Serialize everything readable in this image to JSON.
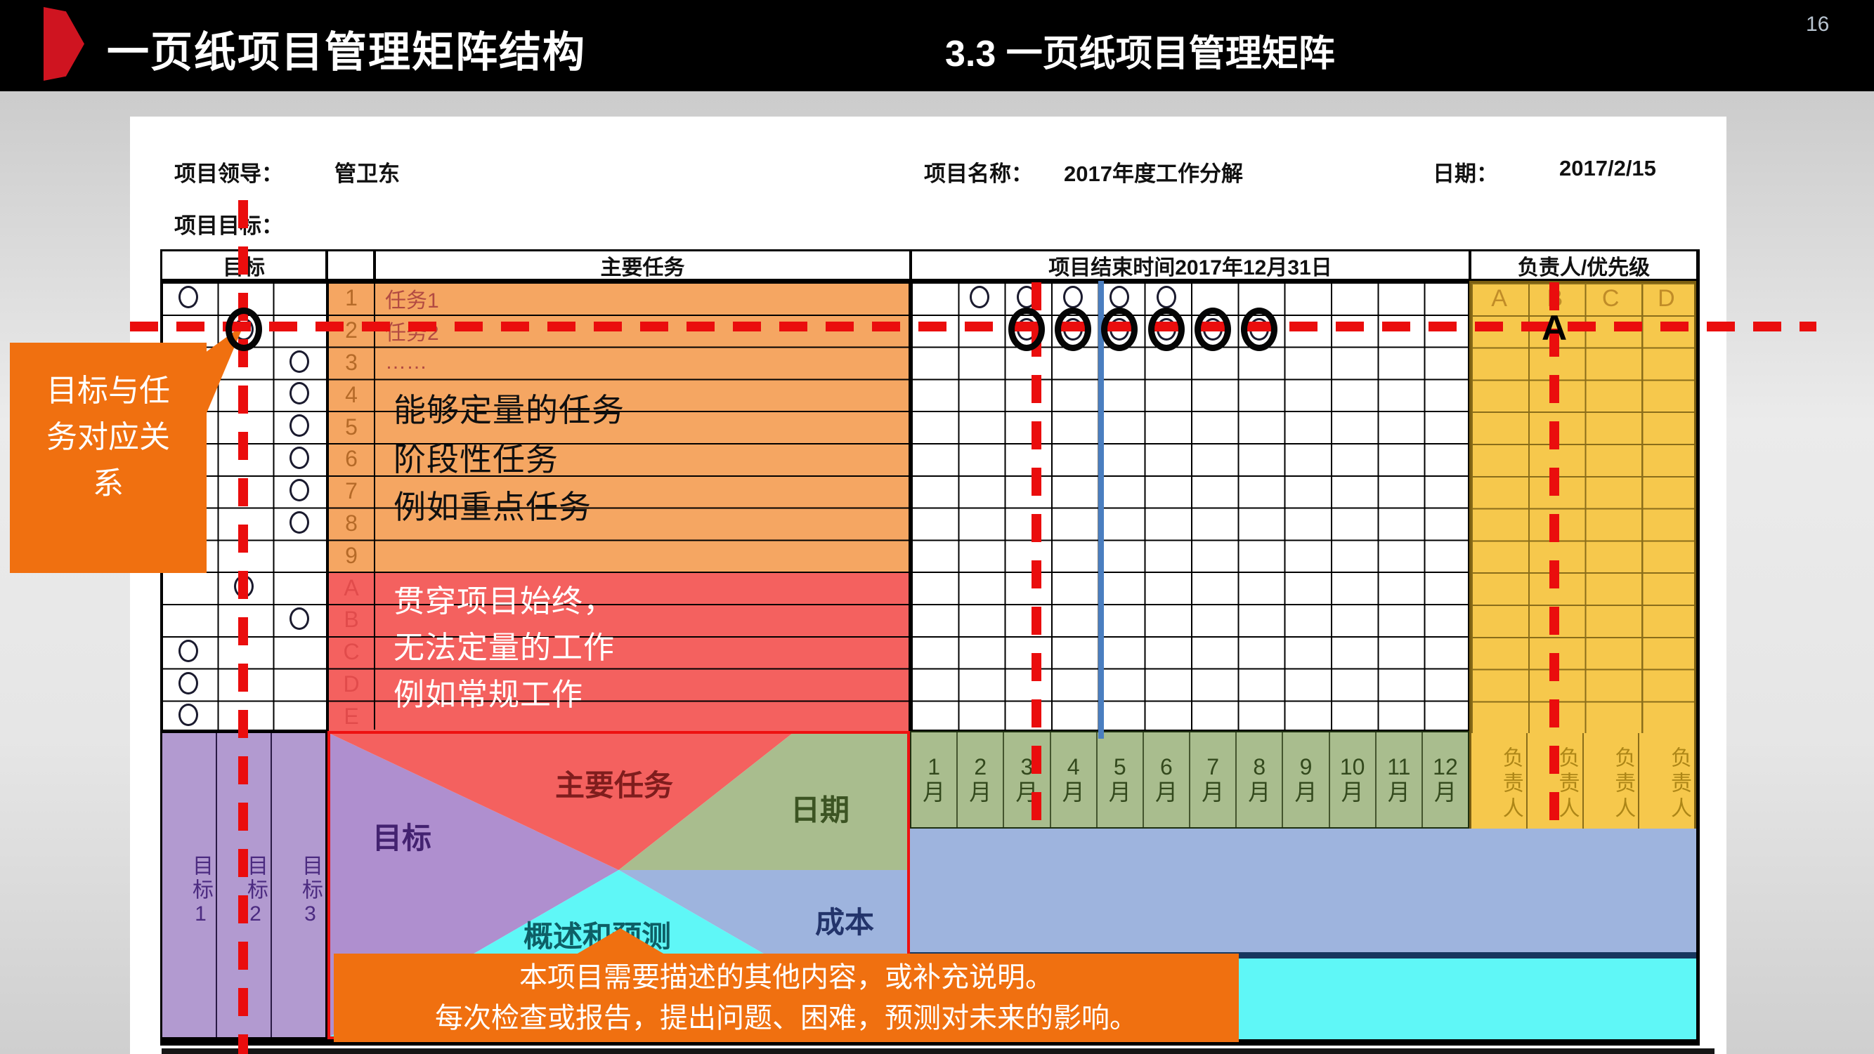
{
  "slide": {
    "page_number": "16"
  },
  "header": {
    "title_left": "一页纸项目管理矩阵结构",
    "title_right": "3.3 一页纸项目管理矩阵"
  },
  "info": {
    "leader_label": "项目领导：",
    "leader_value": "管卫东",
    "name_label": "项目名称：",
    "name_value": "2017年度工作分解",
    "date_label": "日期：",
    "date_value": "2017/2/15",
    "goal_label": "项目目标："
  },
  "matrix": {
    "goal_header": "目标",
    "tasks_header": "主要任务",
    "timeline_header": "项目结束时间2017年12月31日",
    "owner_header": "负责人/优先级",
    "task_rows": [
      {
        "num": "1",
        "label": "任务1"
      },
      {
        "num": "2",
        "label": "任务2"
      },
      {
        "num": "3",
        "label": "……"
      },
      {
        "num": "4",
        "label": ""
      },
      {
        "num": "5",
        "label": ""
      },
      {
        "num": "6",
        "label": ""
      },
      {
        "num": "7",
        "label": ""
      },
      {
        "num": "8",
        "label": ""
      },
      {
        "num": "9",
        "label": ""
      }
    ],
    "routine_rows": [
      {
        "num": "A"
      },
      {
        "num": "B"
      },
      {
        "num": "C"
      },
      {
        "num": "D"
      },
      {
        "num": "E"
      }
    ],
    "months": [
      "1",
      "2",
      "3",
      "4",
      "5",
      "6",
      "7",
      "8",
      "9",
      "10",
      "11",
      "12"
    ],
    "month_unit": "月",
    "priority_letters": [
      "A",
      "B",
      "C",
      "D"
    ],
    "owner_col_labels": [
      "负责人",
      "负责人",
      "负责人",
      "负责人"
    ],
    "quant_note_lines": [
      "能够定量的任务",
      "阶段性任务",
      "例如重点任务"
    ],
    "routine_note_lines": [
      "贯穿项目始终，",
      "无法定量的工作",
      "例如常规工作"
    ],
    "goal_marks": [
      {
        "row": 1,
        "col": 1,
        "ringed": false
      },
      {
        "row": 2,
        "col": 2,
        "ringed": true
      },
      {
        "row": 3,
        "col": 3,
        "ringed": false
      },
      {
        "row": 4,
        "col": 3,
        "ringed": false
      },
      {
        "row": 5,
        "col": 3,
        "ringed": false
      },
      {
        "row": 6,
        "col": 3,
        "ringed": false
      },
      {
        "row": 7,
        "col": 3,
        "ringed": false
      },
      {
        "row": 8,
        "col": 3,
        "ringed": false
      },
      {
        "row": 9,
        "col": 1,
        "ringed": false
      },
      {
        "row": 10,
        "col": 2,
        "ringed": false
      },
      {
        "row": 11,
        "col": 3,
        "ringed": false
      },
      {
        "row": 12,
        "col": 1,
        "ringed": false
      },
      {
        "row": 13,
        "col": 1,
        "ringed": false
      },
      {
        "row": 14,
        "col": 1,
        "ringed": false
      }
    ],
    "month_marks": [
      {
        "row": 1,
        "months": [
          2,
          3,
          4,
          5,
          6
        ],
        "ringed": false
      },
      {
        "row": 2,
        "months": [
          3,
          4,
          5,
          6,
          7,
          8
        ],
        "ringed": true
      }
    ],
    "priority_mark": {
      "label": "A"
    }
  },
  "quadrant": {
    "goal": "目标",
    "main_tasks": "主要任务",
    "date": "日期",
    "overview": "概述和预测",
    "cost": "成本"
  },
  "goal_columns": [
    "目标1",
    "目标2",
    "目标3"
  ],
  "callouts": {
    "left": "目标与任务对应关系",
    "bottom_line1": "本项目需要描述的其他内容，或补充说明。",
    "bottom_line2": "每次检查或报告，提出问题、困难，预测对未来的影响。"
  },
  "colors": {
    "accent_red": "#ea0d0d",
    "callout_orange": "#f07010",
    "task_orange": "#f5a662",
    "routine_red": "#f4615f",
    "priority_yellow": "#f6c84c",
    "month_green": "#a9bd8e",
    "goal_purple": "#b29ad0",
    "overview_cyan": "#5ff7f7",
    "cost_blue": "#9eb4de",
    "progress_blue_line": "#4a7ec0"
  }
}
